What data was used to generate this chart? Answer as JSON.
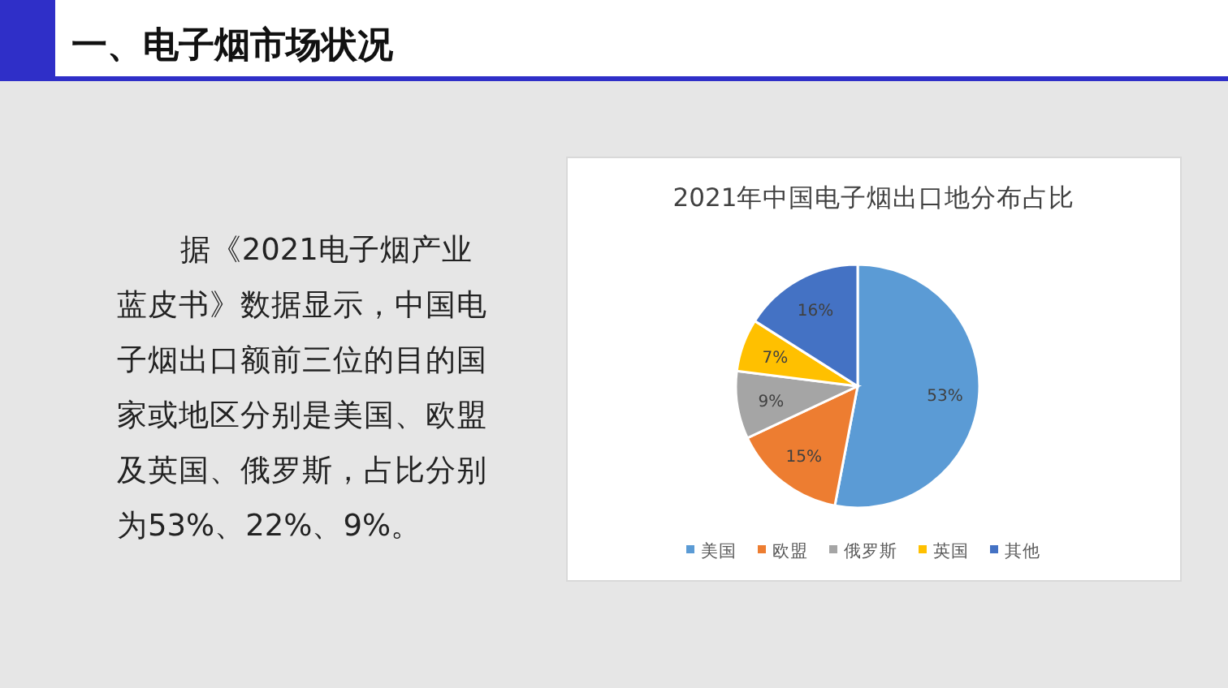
{
  "chart_data": {
    "type": "pie",
    "title": "2021年中国电子烟出口地分布占比",
    "categories": [
      "美国",
      "欧盟",
      "俄罗斯",
      "英国",
      "其他"
    ],
    "values": [
      53,
      15,
      9,
      7,
      16
    ],
    "value_labels": [
      "53%",
      "15%",
      "9%",
      "7%",
      "16%"
    ],
    "colors": [
      "#5b9bd5",
      "#ed7d31",
      "#a5a5a5",
      "#ffc000",
      "#4472c4"
    ],
    "legend": "bottom",
    "annotations": [
      "一、电子烟市场状况",
      "据《2021电子烟产业蓝皮书》数据显示，中国电子烟出口额前三位的目的国家或地区分别是美国、欧盟及英国、俄罗斯，占比分别为53%、22%、9%。"
    ]
  }
}
